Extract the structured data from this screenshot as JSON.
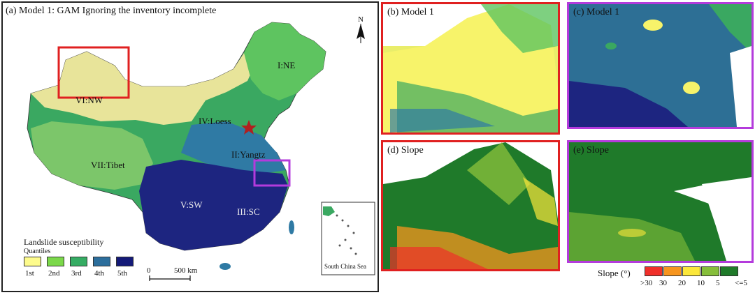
{
  "panel_a": {
    "title": "(a) Model 1: GAM Ignoring the inventory incomplete",
    "north": "N",
    "regions": {
      "ne": "I:NE",
      "yangtz": "II:Yangtz",
      "sc": "III:SC",
      "loess": "IV:Loess",
      "sw": "V:SW",
      "nw": "VI:NW",
      "tibet": "VII:Tibet"
    },
    "legend": {
      "title": "Landslide susceptibility",
      "subtitle": "Quantiles",
      "classes": [
        "1st",
        "2nd",
        "3rd",
        "4th",
        "5th"
      ],
      "colors": [
        "#fdfb8c",
        "#7bd84a",
        "#35ac63",
        "#2c6e9c",
        "#141a78"
      ]
    },
    "scalebar": {
      "start": "0",
      "end": "500 km"
    },
    "inset_label": "South China Sea"
  },
  "panel_b": {
    "title": "(b) Model 1"
  },
  "panel_c": {
    "title": "(c) Model 1"
  },
  "panel_d": {
    "title": "(d) Slope"
  },
  "panel_e": {
    "title": "(e) Slope"
  },
  "slope_legend": {
    "title": "Slope (°)",
    "ticks": [
      ">30",
      "30",
      "20",
      "10",
      "5",
      "<=5"
    ],
    "colors": [
      "#f0302a",
      "#f7951e",
      "#fbe73a",
      "#86be3b",
      "#1f7a2a"
    ]
  },
  "frame_colors": {
    "red": "#e02020",
    "purple": "#b43bdc"
  }
}
